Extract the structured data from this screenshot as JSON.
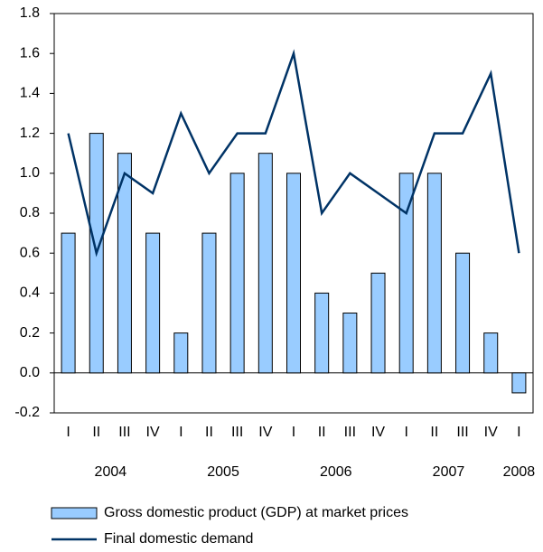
{
  "chart_data": {
    "type": "bar_line",
    "categories": [
      "I",
      "II",
      "III",
      "IV",
      "I",
      "II",
      "III",
      "IV",
      "I",
      "II",
      "III",
      "IV",
      "I",
      "II",
      "III",
      "IV",
      "I"
    ],
    "years": [
      "2004",
      "2005",
      "2006",
      "2007",
      "2008"
    ],
    "series": [
      {
        "name": "Gross domestic product (GDP) at market prices",
        "type": "bar",
        "color": "#99ccff",
        "values": [
          0.7,
          1.2,
          1.1,
          0.7,
          0.2,
          0.7,
          1.0,
          1.1,
          1.0,
          0.4,
          0.3,
          0.5,
          1.0,
          1.0,
          0.6,
          0.2,
          -0.1
        ]
      },
      {
        "name": "Final domestic demand",
        "type": "line",
        "color": "#003366",
        "values": [
          1.2,
          0.6,
          1.0,
          0.9,
          1.3,
          1.0,
          1.2,
          1.2,
          1.6,
          0.8,
          1.0,
          0.9,
          0.8,
          1.2,
          1.2,
          1.5,
          0.6
        ]
      }
    ],
    "ylim": [
      -0.2,
      1.8
    ],
    "yticks": [
      -0.2,
      0.2,
      0.4,
      0.6,
      0.8,
      1.2,
      1.4,
      1.6,
      1.8,
      {
        "value": 0,
        "label": "0.0"
      },
      {
        "value": 1,
        "label": "1.0"
      }
    ]
  }
}
